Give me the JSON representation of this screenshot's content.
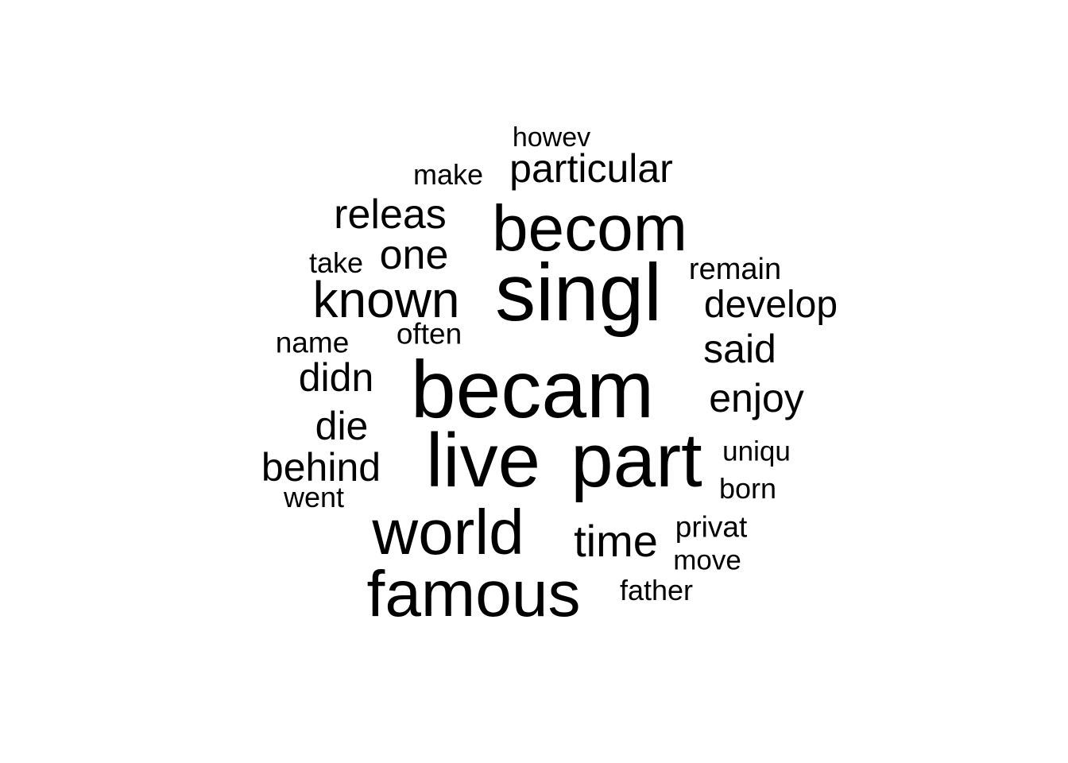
{
  "wordcloud": {
    "text_color": "#000000",
    "background": "#ffffff",
    "words": [
      "becam",
      "singl",
      "live",
      "part",
      "becom",
      "famous",
      "world",
      "known",
      "particular",
      "releas",
      "one",
      "time",
      "develop",
      "didn",
      "behind",
      "said",
      "enjoy",
      "die",
      "remain",
      "name",
      "often",
      "make",
      "take",
      "privat",
      "howev",
      "uniqu",
      "born",
      "went",
      "move",
      "father"
    ]
  }
}
